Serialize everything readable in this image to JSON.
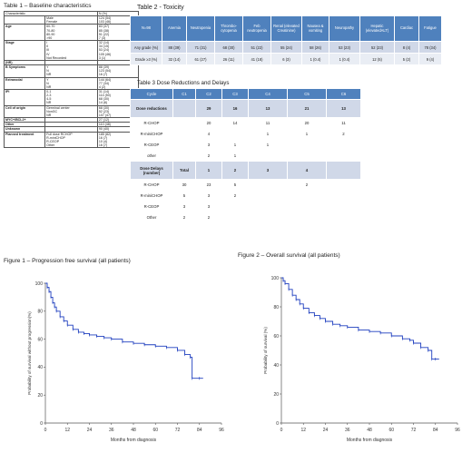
{
  "table1": {
    "title": "Table 1 – Baseline characteristics",
    "header": {
      "label": "Characteristic",
      "n": "N (%)"
    },
    "groups": [
      {
        "label": "",
        "rows": [
          {
            "sub": "Male",
            "n": "124 (54)"
          },
          {
            "sub": "Female",
            "n": "103 (46)"
          }
        ]
      },
      {
        "label": "Age",
        "rows": [
          {
            "sub": "60-70",
            "n": "83 (37)"
          },
          {
            "sub": "70-80",
            "n": "85 (38)"
          },
          {
            "sub": "80-90",
            "n": "51 (22)"
          },
          {
            "sub": ">90",
            "n": "7 (3)"
          }
        ]
      },
      {
        "label": "Stage",
        "rows": [
          {
            "sub": "I",
            "n": "32 (14)"
          },
          {
            "sub": "II",
            "n": "34 (15)"
          },
          {
            "sub": "III",
            "n": "53 (24)"
          },
          {
            "sub": "IV",
            "n": "105 (46)"
          },
          {
            "sub": "Not Recorded",
            "n": "3 (1)"
          }
        ]
      },
      {
        "label": "(NR)",
        "rows": []
      },
      {
        "label": "B Symptoms",
        "rows": [
          {
            "sub": "Y",
            "n": "88 (39)"
          },
          {
            "sub": "N",
            "n": "123 (54)"
          },
          {
            "sub": "NR",
            "n": "16 (7)"
          }
        ]
      },
      {
        "label": "Extranodal",
        "rows": [
          {
            "sub": "Y",
            "n": "144 (64)"
          },
          {
            "sub": "N",
            "n": "77 (34)"
          },
          {
            "sub": "NR",
            "n": "4 (2)"
          }
        ]
      },
      {
        "label": "IPI",
        "rows": [
          {
            "sub": "0-1",
            "n": "31 (14)"
          },
          {
            "sub": "2-3",
            "n": "114 (50)"
          },
          {
            "sub": "4-5",
            "n": "68 (30)"
          },
          {
            "sub": "NR",
            "n": "14 (6)"
          }
        ]
      },
      {
        "label": "Cell of origin",
        "rows": [
          {
            "sub": "Germinal center",
            "n": "68 (30)"
          },
          {
            "sub": "NonGC",
            "n": "52 (23)"
          },
          {
            "sub": "NR",
            "n": "107 (47)"
          }
        ]
      },
      {
        "label": "MYC+/BCL2+",
        "rows": [
          {
            "sub": "",
            "n": "27 (12)"
          }
        ]
      },
      {
        "label": "Other",
        "rows": [
          {
            "sub": "",
            "n": "110 (48)"
          }
        ]
      },
      {
        "label": "Unknown",
        "rows": [
          {
            "sub": "",
            "n": "90 (40)"
          }
        ]
      },
      {
        "label": "Planned treatment",
        "rows": [
          {
            "sub": "Full dose RCHOP",
            "n": "185 (82)"
          },
          {
            "sub": "R-miniCHOP",
            "n": "16 (7)"
          },
          {
            "sub": "R-CEOP",
            "n": "10 (4)"
          },
          {
            "sub": "Other",
            "n": "16 (7)"
          }
        ]
      }
    ]
  },
  "table2": {
    "title": "Table 2 - Toxicity",
    "headers": [
      "N=98",
      "Anemia",
      "Neutropenia",
      "Thrombo-cytopenia",
      "Feb neutropenia",
      "Renal (elevated Creatinine)",
      "Nausea & vomiting",
      "Neuropathy",
      "Hepatic (elevatedALT)",
      "Cardiac",
      "Fatigue"
    ],
    "rows": [
      [
        "Any grade (%)",
        "88 (39)",
        "71 (31)",
        "68 (30)",
        "51 (22)",
        "55 (24)",
        "58 (26)",
        "53 (23)",
        "52 (23)",
        "8 (4)",
        "78 (34)"
      ],
      [
        "Grade ≥3 (%)",
        "32 (14)",
        "61 (27)",
        "26 (11)",
        "41 (18)",
        "6 (3)",
        "1 (0.4)",
        "1 (0.4)",
        "12 (5)",
        "5 (2)",
        "9 (4)"
      ]
    ]
  },
  "table3": {
    "title": "Table 3 Dose Reductions and Delays",
    "headers": [
      "Cycle",
      "C1",
      "C2",
      "C3",
      "C4",
      "C5",
      "C6"
    ],
    "rows": [
      {
        "kind": "hd",
        "cells": [
          "Dose reductions",
          "",
          "29",
          "16",
          "13",
          "21",
          "13"
        ]
      },
      {
        "kind": "rl",
        "cells": [
          "R-CHOP",
          "",
          "20",
          "14",
          "11",
          "20",
          "11"
        ]
      },
      {
        "kind": "rl",
        "cells": [
          "R-miniCHOP",
          "",
          "4",
          "",
          "1",
          "1",
          "2"
        ]
      },
      {
        "kind": "rl",
        "cells": [
          "R-CEOP",
          "",
          "3",
          "1",
          "1",
          "",
          ""
        ]
      },
      {
        "kind": "rl",
        "cells": [
          "other",
          "",
          "2",
          "1",
          "",
          "",
          ""
        ]
      },
      {
        "kind": "hd",
        "cells": [
          "Dose Delays (number)",
          "Total",
          "1",
          "2",
          "3",
          "4",
          ""
        ]
      },
      {
        "kind": "rl",
        "cells": [
          "R-CHOP",
          "30",
          "23",
          "5",
          "",
          "2",
          ""
        ]
      },
      {
        "kind": "rl",
        "cells": [
          "R-miniCHOP",
          "5",
          "3",
          "2",
          "",
          "",
          ""
        ]
      },
      {
        "kind": "rl",
        "cells": [
          "R-CEOP",
          "3",
          "3",
          "",
          "",
          "",
          ""
        ]
      },
      {
        "kind": "rl",
        "cells": [
          "Other",
          "2",
          "2",
          "",
          "",
          "",
          ""
        ]
      }
    ]
  },
  "chart_data": [
    {
      "type": "line",
      "title": "Figure 1 – Progression free survival (all patients)",
      "xlabel": "Months from diagnosis",
      "ylabel": "Probability of survival without progression(%)",
      "xlim": [
        0,
        96
      ],
      "ylim": [
        0,
        100
      ],
      "xticks": [
        0,
        12,
        24,
        36,
        48,
        60,
        72,
        84,
        96
      ],
      "yticks": [
        0,
        20,
        40,
        60,
        80,
        100
      ],
      "color": "#1f3fbf",
      "series": [
        {
          "x": [
            0,
            1,
            2,
            3,
            4,
            5,
            6,
            8,
            10,
            12,
            15,
            18,
            21,
            24,
            28,
            32,
            36,
            42,
            48,
            54,
            60,
            66,
            72,
            76,
            79,
            80,
            84,
            86
          ],
          "y": [
            100,
            97,
            94,
            90,
            86,
            83,
            80,
            76,
            73,
            70,
            67,
            65,
            64,
            63,
            62,
            61,
            60,
            58,
            57,
            56,
            55,
            54,
            52,
            49,
            47,
            32,
            32,
            32
          ]
        }
      ]
    },
    {
      "type": "line",
      "title": "Figure 2 – Overall survival (all patients)",
      "xlabel": "Months from diagnosis",
      "ylabel": "Probability of survival (%)",
      "xlim": [
        0,
        96
      ],
      "ylim": [
        0,
        100
      ],
      "xticks": [
        0,
        12,
        24,
        36,
        48,
        60,
        72,
        84,
        96
      ],
      "yticks": [
        0,
        20,
        40,
        60,
        80,
        100
      ],
      "color": "#1f3fbf",
      "series": [
        {
          "x": [
            0,
            1,
            2,
            4,
            6,
            8,
            10,
            12,
            15,
            18,
            21,
            24,
            28,
            32,
            36,
            42,
            48,
            54,
            60,
            66,
            70,
            72,
            76,
            80,
            82,
            84,
            86
          ],
          "y": [
            100,
            98,
            96,
            92,
            88,
            85,
            82,
            79,
            76,
            74,
            72,
            70,
            68,
            67,
            66,
            64,
            63,
            62,
            60,
            58,
            57,
            55,
            52,
            50,
            44,
            44,
            44
          ]
        }
      ]
    }
  ]
}
